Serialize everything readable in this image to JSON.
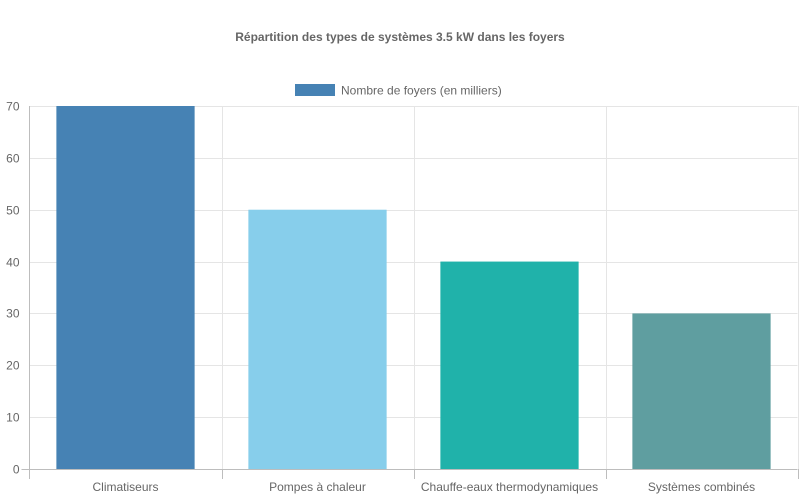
{
  "chart_data": {
    "type": "bar",
    "title": "Répartition des types de systèmes 3.5 kW dans les foyers",
    "categories": [
      "Climatiseurs",
      "Pompes à chaleur",
      "Chauffe-eaux thermodynamiques",
      "Systèmes combinés"
    ],
    "series": [
      {
        "name": "Nombre de foyers (en milliers)",
        "values": [
          70,
          50,
          40,
          30
        ]
      }
    ],
    "colors": [
      "#4682B4",
      "#87CEEB",
      "#20B2AA",
      "#5F9EA0"
    ],
    "legend_color": "#4682B4",
    "ylim": [
      0,
      70
    ],
    "yticks": [
      0,
      10,
      20,
      30,
      40,
      50,
      60,
      70
    ],
    "grid": true,
    "legend_position": "top"
  }
}
